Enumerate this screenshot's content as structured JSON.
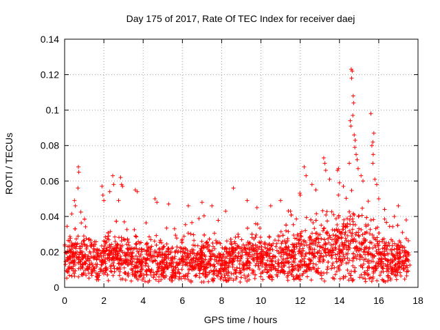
{
  "chart_data": {
    "type": "scatter",
    "title": "Day 175 of 2017, Rate Of TEC Index for receiver daej",
    "xlabel": "GPS time / hours",
    "ylabel": "ROTI / TECUs",
    "xlim": [
      0,
      18
    ],
    "ylim": [
      0,
      0.14
    ],
    "x_ticks": [
      0,
      2,
      4,
      6,
      8,
      10,
      12,
      14,
      16,
      18
    ],
    "x_tick_labels": [
      "0",
      "2",
      "4",
      "6",
      "8",
      "10",
      "12",
      "14",
      "16",
      "18"
    ],
    "y_ticks": [
      0,
      0.02,
      0.04,
      0.06,
      0.08,
      0.1,
      0.12,
      0.14
    ],
    "y_tick_labels": [
      "0",
      "0.02",
      "0.04",
      "0.06",
      "0.08",
      "0.1",
      "0.12",
      "0.14"
    ],
    "grid": true,
    "marker": "plus",
    "color": "#ff0000",
    "envelope": {
      "hours": [
        0,
        0.5,
        1,
        1.5,
        2,
        2.5,
        3,
        3.5,
        4,
        4.5,
        5,
        5.5,
        6,
        6.5,
        7,
        7.5,
        8,
        8.5,
        9,
        9.5,
        10,
        10.5,
        11,
        11.5,
        12,
        12.5,
        13,
        13.5,
        14,
        14.5,
        15,
        15.5,
        16,
        16.5,
        17,
        17.5
      ],
      "median": [
        0.016,
        0.017,
        0.016,
        0.015,
        0.016,
        0.017,
        0.017,
        0.016,
        0.015,
        0.015,
        0.014,
        0.014,
        0.015,
        0.015,
        0.016,
        0.015,
        0.014,
        0.015,
        0.015,
        0.016,
        0.016,
        0.015,
        0.016,
        0.017,
        0.018,
        0.02,
        0.021,
        0.022,
        0.023,
        0.024,
        0.022,
        0.02,
        0.017,
        0.015,
        0.015,
        0.014
      ],
      "spread": [
        0.008,
        0.009,
        0.009,
        0.008,
        0.009,
        0.01,
        0.01,
        0.009,
        0.009,
        0.009,
        0.008,
        0.008,
        0.009,
        0.009,
        0.009,
        0.009,
        0.008,
        0.009,
        0.009,
        0.009,
        0.009,
        0.009,
        0.009,
        0.01,
        0.011,
        0.012,
        0.013,
        0.013,
        0.014,
        0.015,
        0.014,
        0.013,
        0.01,
        0.009,
        0.008,
        0.008
      ]
    },
    "highlight_points": [
      {
        "x": 0.7,
        "y": 0.068
      },
      {
        "x": 0.72,
        "y": 0.065
      },
      {
        "x": 0.68,
        "y": 0.056
      },
      {
        "x": 0.5,
        "y": 0.049
      },
      {
        "x": 0.55,
        "y": 0.046
      },
      {
        "x": 1.9,
        "y": 0.057
      },
      {
        "x": 1.95,
        "y": 0.052
      },
      {
        "x": 2.0,
        "y": 0.049
      },
      {
        "x": 2.45,
        "y": 0.063
      },
      {
        "x": 2.5,
        "y": 0.058
      },
      {
        "x": 2.3,
        "y": 0.054
      },
      {
        "x": 2.85,
        "y": 0.062
      },
      {
        "x": 2.9,
        "y": 0.058
      },
      {
        "x": 2.95,
        "y": 0.057
      },
      {
        "x": 2.75,
        "y": 0.049
      },
      {
        "x": 3.6,
        "y": 0.055
      },
      {
        "x": 3.7,
        "y": 0.054
      },
      {
        "x": 4.6,
        "y": 0.05
      },
      {
        "x": 4.7,
        "y": 0.048
      },
      {
        "x": 5.3,
        "y": 0.047
      },
      {
        "x": 6.3,
        "y": 0.046
      },
      {
        "x": 7.0,
        "y": 0.048
      },
      {
        "x": 7.5,
        "y": 0.046
      },
      {
        "x": 8.6,
        "y": 0.056
      },
      {
        "x": 8.2,
        "y": 0.043
      },
      {
        "x": 9.3,
        "y": 0.049
      },
      {
        "x": 9.8,
        "y": 0.045
      },
      {
        "x": 10.5,
        "y": 0.046
      },
      {
        "x": 11.0,
        "y": 0.049
      },
      {
        "x": 11.5,
        "y": 0.043
      },
      {
        "x": 12.0,
        "y": 0.052
      },
      {
        "x": 12.2,
        "y": 0.068
      },
      {
        "x": 12.3,
        "y": 0.063
      },
      {
        "x": 12.6,
        "y": 0.058
      },
      {
        "x": 12.8,
        "y": 0.055
      },
      {
        "x": 13.2,
        "y": 0.073
      },
      {
        "x": 13.25,
        "y": 0.07
      },
      {
        "x": 13.3,
        "y": 0.066
      },
      {
        "x": 13.5,
        "y": 0.061
      },
      {
        "x": 13.9,
        "y": 0.066
      },
      {
        "x": 13.95,
        "y": 0.067
      },
      {
        "x": 14.0,
        "y": 0.059
      },
      {
        "x": 14.2,
        "y": 0.057
      },
      {
        "x": 14.6,
        "y": 0.123
      },
      {
        "x": 14.65,
        "y": 0.122
      },
      {
        "x": 14.62,
        "y": 0.118
      },
      {
        "x": 14.7,
        "y": 0.108
      },
      {
        "x": 14.72,
        "y": 0.104
      },
      {
        "x": 14.68,
        "y": 0.097
      },
      {
        "x": 14.55,
        "y": 0.094
      },
      {
        "x": 14.58,
        "y": 0.091
      },
      {
        "x": 14.75,
        "y": 0.086
      },
      {
        "x": 14.8,
        "y": 0.083
      },
      {
        "x": 14.78,
        "y": 0.079
      },
      {
        "x": 14.85,
        "y": 0.075
      },
      {
        "x": 14.9,
        "y": 0.072
      },
      {
        "x": 14.5,
        "y": 0.07
      },
      {
        "x": 14.95,
        "y": 0.067
      },
      {
        "x": 15.1,
        "y": 0.063
      },
      {
        "x": 15.2,
        "y": 0.06
      },
      {
        "x": 15.6,
        "y": 0.098
      },
      {
        "x": 15.75,
        "y": 0.087
      },
      {
        "x": 15.7,
        "y": 0.082
      },
      {
        "x": 15.65,
        "y": 0.08
      },
      {
        "x": 15.72,
        "y": 0.075
      },
      {
        "x": 15.7,
        "y": 0.07
      },
      {
        "x": 15.8,
        "y": 0.061
      },
      {
        "x": 15.9,
        "y": 0.058
      },
      {
        "x": 16.0,
        "y": 0.05
      },
      {
        "x": 16.3,
        "y": 0.044
      },
      {
        "x": 16.8,
        "y": 0.04
      },
      {
        "x": 17.0,
        "y": 0.046
      },
      {
        "x": 17.4,
        "y": 0.038
      }
    ]
  }
}
